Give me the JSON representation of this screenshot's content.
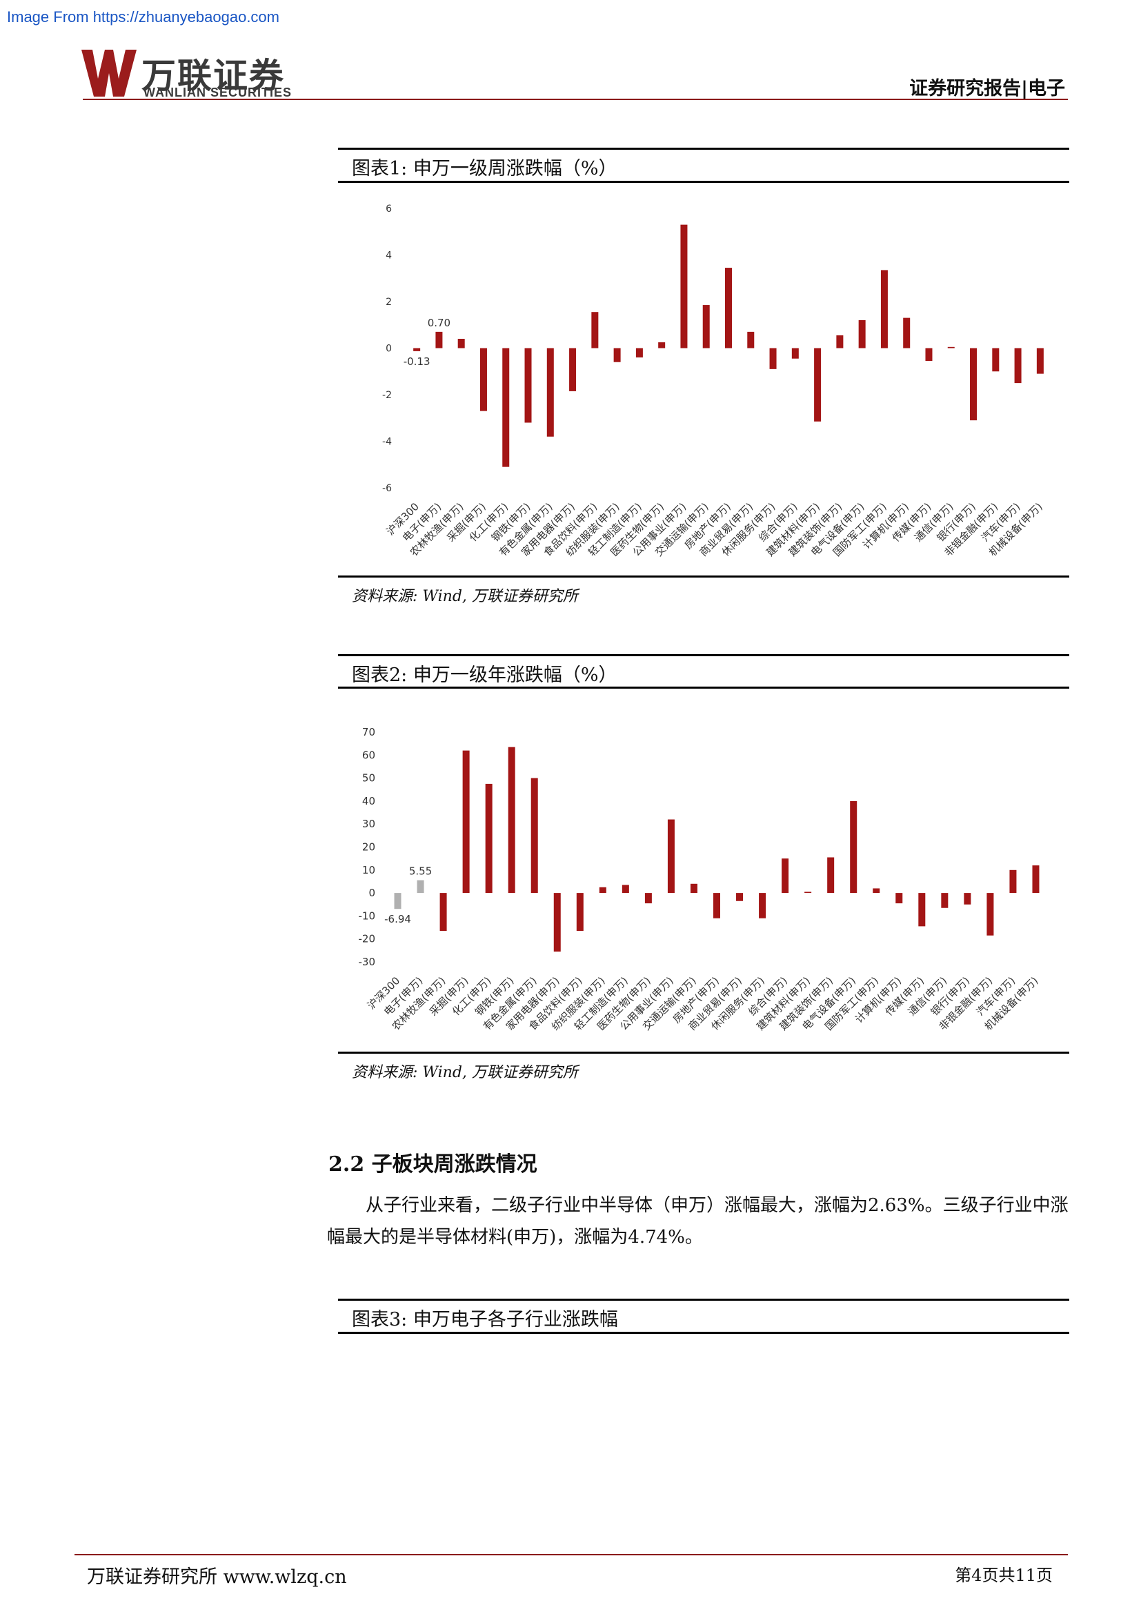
{
  "watermark": "Image From https://zhuanyebaogao.com",
  "header": {
    "logo_cn": "万联证券",
    "logo_en": "WANLIAN SECURITIES",
    "report_tag": "证券研究报告|电子"
  },
  "figures": [
    {
      "title": "图表1:   申万一级周涨跌幅（%）",
      "source": "资料来源: Wind, 万联证券研究所"
    },
    {
      "title": "图表2:  申万一级年涨跌幅（%）",
      "source": "资料来源: Wind, 万联证券研究所"
    },
    {
      "title": "图表3:  申万电子各子行业涨跌幅"
    }
  ],
  "section": {
    "heading": "2.2   子板块周涨跌情况",
    "paragraph": "从子行业来看，二级子行业中半导体（申万）涨幅最大，涨幅为2.63%。三级子行业中涨幅最大的是半导体材料(申万)，涨幅为4.74%。"
  },
  "footer": {
    "left": "万联证券研究所  www.wlzq.cn",
    "right": "第4页共11页"
  },
  "colors": {
    "bar": "#a31515",
    "highlight_bar": "#b0b0b0",
    "brand": "#8b1a1a"
  },
  "chart_data": [
    {
      "type": "bar",
      "title": "申万一级周涨跌幅（%）",
      "categories": [
        "沪深300",
        "电子(申万)",
        "农林牧渔(申万)",
        "采掘(申万)",
        "化工(申万)",
        "钢铁(申万)",
        "有色金属(申万)",
        "家用电器(申万)",
        "食品饮料(申万)",
        "纺织服装(申万)",
        "轻工制造(申万)",
        "医药生物(申万)",
        "公用事业(申万)",
        "交通运输(申万)",
        "房地产(申万)",
        "商业贸易(申万)",
        "休闲服务(申万)",
        "综合(申万)",
        "建筑材料(申万)",
        "建筑装饰(申万)",
        "电气设备(申万)",
        "国防军工(申万)",
        "计算机(申万)",
        "传媒(申万)",
        "通信(申万)",
        "银行(申万)",
        "非银金融(申万)",
        "汽车(申万)",
        "机械设备(申万)"
      ],
      "values": [
        -0.13,
        0.7,
        0.4,
        -2.7,
        -5.1,
        -3.2,
        -3.8,
        -1.85,
        1.55,
        -0.6,
        -0.4,
        0.25,
        5.3,
        1.85,
        3.45,
        0.7,
        -0.9,
        -0.45,
        -3.15,
        0.55,
        1.2,
        3.35,
        1.3,
        -0.55,
        0.05,
        -3.1,
        -1.0,
        -1.5,
        -1.1
      ],
      "ylim": [
        -6,
        6
      ],
      "yticks": [
        6,
        4,
        2,
        0,
        -2,
        -4,
        -6
      ],
      "data_labels": [
        {
          "index": 0,
          "text": "-0.13"
        },
        {
          "index": 1,
          "text": "0.70"
        }
      ]
    },
    {
      "type": "bar",
      "title": "申万一级年涨跌幅（%）",
      "categories": [
        "沪深300",
        "电子(申万)",
        "农林牧渔(申万)",
        "采掘(申万)",
        "化工(申万)",
        "钢铁(申万)",
        "有色金属(申万)",
        "家用电器(申万)",
        "食品饮料(申万)",
        "纺织服装(申万)",
        "轻工制造(申万)",
        "医药生物(申万)",
        "公用事业(申万)",
        "交通运输(申万)",
        "房地产(申万)",
        "商业贸易(申万)",
        "休闲服务(申万)",
        "综合(申万)",
        "建筑材料(申万)",
        "建筑装饰(申万)",
        "电气设备(申万)",
        "国防军工(申万)",
        "计算机(申万)",
        "传媒(申万)",
        "通信(申万)",
        "银行(申万)",
        "非银金融(申万)",
        "汽车(申万)",
        "机械设备(申万)"
      ],
      "values": [
        -6.94,
        5.55,
        -16.5,
        62.0,
        47.5,
        63.5,
        50.0,
        -25.5,
        -16.5,
        2.5,
        3.5,
        -4.5,
        32.0,
        4.0,
        -11.0,
        -3.5,
        -11.0,
        15.0,
        0.5,
        15.5,
        40.0,
        2.0,
        -4.5,
        -14.5,
        -6.5,
        -5.0,
        -18.5,
        10.0,
        12.0
      ],
      "ylim": [
        -30,
        70
      ],
      "yticks": [
        70,
        60,
        50,
        40,
        30,
        20,
        10,
        0,
        -10,
        -20,
        -30
      ],
      "highlight": [
        0,
        1
      ],
      "data_labels": [
        {
          "index": 0,
          "text": "-6.94"
        },
        {
          "index": 1,
          "text": "5.55"
        }
      ]
    }
  ]
}
